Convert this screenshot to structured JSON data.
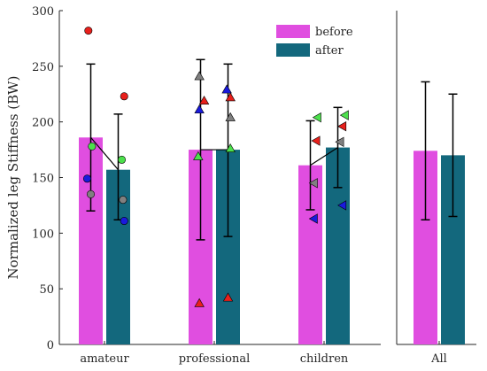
{
  "chart_data": {
    "type": "bar",
    "ylabel": "Normalized leg Stiffness (BW)",
    "ylim": [
      0,
      300
    ],
    "yticks": [
      "0",
      "50",
      "100",
      "150",
      "200",
      "250",
      "300"
    ],
    "categories": [
      "amateur",
      "professional",
      "children",
      "All"
    ],
    "legend": {
      "position": "top-right"
    },
    "series": [
      {
        "name": "before",
        "color": "#e04ee0",
        "values": [
          186,
          175,
          161,
          174
        ],
        "err_low": [
          120,
          94,
          121,
          112
        ],
        "err_high": [
          252,
          256,
          201,
          236
        ]
      },
      {
        "name": "after",
        "color": "#13687d",
        "values": [
          157,
          175,
          177,
          170
        ],
        "err_low": [
          112,
          97,
          141,
          115
        ],
        "err_high": [
          207,
          252,
          213,
          225
        ]
      }
    ],
    "connectors": [
      {
        "group": 0,
        "from": 186,
        "to": 157
      },
      {
        "group": 1,
        "from": 175,
        "to": 175
      },
      {
        "group": 2,
        "from": 161,
        "to": 177
      }
    ],
    "points": [
      {
        "group": 0,
        "series": 0,
        "offset": -0.1,
        "y": 282,
        "marker": "circle",
        "color": "#e8201c"
      },
      {
        "group": 0,
        "series": 0,
        "offset": 0.05,
        "y": 178,
        "marker": "circle",
        "color": "#4ce04c"
      },
      {
        "group": 0,
        "series": 0,
        "offset": -0.15,
        "y": 149,
        "marker": "circle",
        "color": "#1a1adc"
      },
      {
        "group": 0,
        "series": 0,
        "offset": 0.0,
        "y": 135,
        "marker": "circle",
        "color": "#808080"
      },
      {
        "group": 0,
        "series": 1,
        "offset": 0.25,
        "y": 223,
        "marker": "circle",
        "color": "#e8201c"
      },
      {
        "group": 0,
        "series": 1,
        "offset": 0.15,
        "y": 166,
        "marker": "circle",
        "color": "#4ce04c"
      },
      {
        "group": 0,
        "series": 1,
        "offset": 0.2,
        "y": 130,
        "marker": "circle",
        "color": "#808080"
      },
      {
        "group": 0,
        "series": 1,
        "offset": 0.25,
        "y": 111,
        "marker": "circle",
        "color": "#1a1adc"
      },
      {
        "group": 1,
        "series": 0,
        "offset": -0.05,
        "y": 241,
        "marker": "tri-up",
        "color": "#808080"
      },
      {
        "group": 1,
        "series": 0,
        "offset": 0.15,
        "y": 219,
        "marker": "tri-up",
        "color": "#e8201c"
      },
      {
        "group": 1,
        "series": 0,
        "offset": -0.05,
        "y": 211,
        "marker": "tri-up",
        "color": "#1a1adc"
      },
      {
        "group": 1,
        "series": 0,
        "offset": -0.1,
        "y": 169,
        "marker": "tri-up",
        "color": "#4ce04c"
      },
      {
        "group": 1,
        "series": 0,
        "offset": -0.05,
        "y": 37,
        "marker": "tri-up",
        "color": "#e8201c"
      },
      {
        "group": 1,
        "series": 1,
        "offset": -0.05,
        "y": 229,
        "marker": "tri-up",
        "color": "#1a1adc"
      },
      {
        "group": 1,
        "series": 1,
        "offset": 0.1,
        "y": 222,
        "marker": "tri-up",
        "color": "#e8201c"
      },
      {
        "group": 1,
        "series": 1,
        "offset": 0.1,
        "y": 204,
        "marker": "tri-up",
        "color": "#808080"
      },
      {
        "group": 1,
        "series": 1,
        "offset": 0.1,
        "y": 176,
        "marker": "tri-up",
        "color": "#4ce04c"
      },
      {
        "group": 1,
        "series": 1,
        "offset": 0.0,
        "y": 42,
        "marker": "tri-up",
        "color": "#e8201c"
      },
      {
        "group": 2,
        "series": 0,
        "offset": 0.3,
        "y": 204,
        "marker": "tri-left",
        "color": "#4ce04c"
      },
      {
        "group": 2,
        "series": 0,
        "offset": 0.25,
        "y": 183,
        "marker": "tri-left",
        "color": "#e8201c"
      },
      {
        "group": 2,
        "series": 0,
        "offset": 0.15,
        "y": 145,
        "marker": "tri-left",
        "color": "#808080"
      },
      {
        "group": 2,
        "series": 0,
        "offset": 0.15,
        "y": 113,
        "marker": "tri-left",
        "color": "#1a1adc"
      },
      {
        "group": 2,
        "series": 1,
        "offset": 0.3,
        "y": 206,
        "marker": "tri-left",
        "color": "#4ce04c"
      },
      {
        "group": 2,
        "series": 1,
        "offset": 0.2,
        "y": 196,
        "marker": "tri-left",
        "color": "#e8201c"
      },
      {
        "group": 2,
        "series": 1,
        "offset": 0.1,
        "y": 182,
        "marker": "tri-left",
        "color": "#808080"
      },
      {
        "group": 2,
        "series": 1,
        "offset": 0.2,
        "y": 125,
        "marker": "tri-left",
        "color": "#1a1adc"
      }
    ]
  }
}
